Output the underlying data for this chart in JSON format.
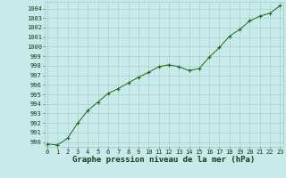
{
  "x": [
    0,
    1,
    2,
    3,
    4,
    5,
    6,
    7,
    8,
    9,
    10,
    11,
    12,
    13,
    14,
    15,
    16,
    17,
    18,
    19,
    20,
    21,
    22,
    23
  ],
  "y": [
    989.8,
    989.7,
    990.4,
    992.0,
    993.3,
    994.2,
    995.1,
    995.6,
    996.2,
    996.8,
    997.3,
    997.9,
    998.1,
    997.9,
    997.5,
    997.7,
    998.9,
    999.9,
    1001.1,
    1001.8,
    1002.7,
    1003.2,
    1003.5,
    1004.3
  ],
  "line_color": "#1a6b1a",
  "marker_color": "#1a6b1a",
  "bg_color": "#c8eaea",
  "grid_color": "#a0c8c8",
  "title": "Graphe pression niveau de la mer (hPa)",
  "xlim": [
    -0.3,
    23.3
  ],
  "ylim": [
    989.5,
    1004.7
  ],
  "yticks": [
    990,
    991,
    992,
    993,
    994,
    995,
    996,
    997,
    998,
    999,
    1000,
    1001,
    1002,
    1003,
    1004
  ],
  "xticks": [
    0,
    1,
    2,
    3,
    4,
    5,
    6,
    7,
    8,
    9,
    10,
    11,
    12,
    13,
    14,
    15,
    16,
    17,
    18,
    19,
    20,
    21,
    22,
    23
  ],
  "title_fontsize": 6.5,
  "tick_fontsize": 5.0,
  "title_color": "#1a3a1a",
  "tick_color": "#1a3a1a"
}
